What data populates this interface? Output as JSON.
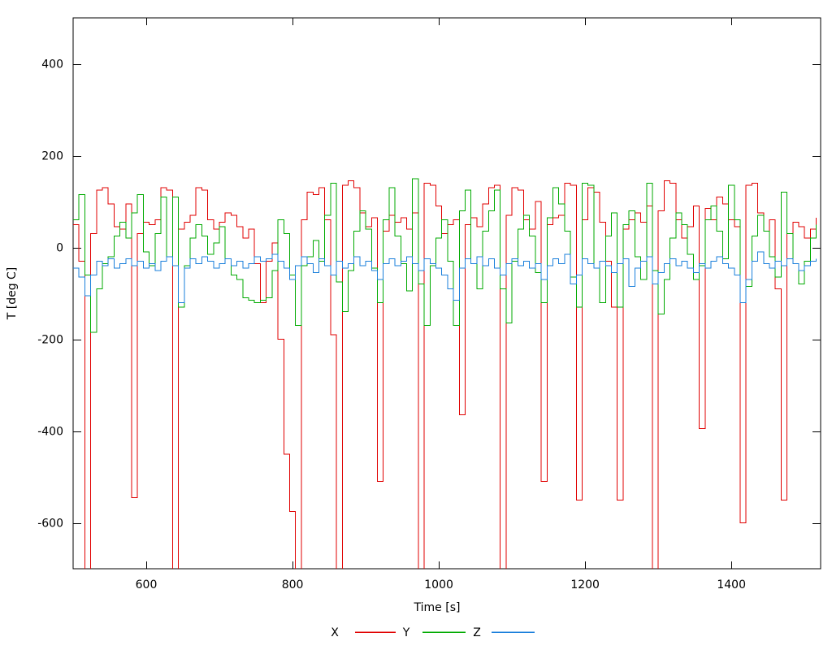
{
  "chart_data": {
    "type": "line",
    "line_style": "steps",
    "title": "",
    "xlabel": "Time [s]",
    "ylabel": "T [deg C]",
    "xlim": [
      500,
      1522
    ],
    "ylim": [
      -700,
      500
    ],
    "xticks": [
      600,
      800,
      1000,
      1200,
      1400
    ],
    "yticks": [
      400,
      200,
      0,
      -200,
      -400,
      -600
    ],
    "grid": false,
    "legend_position": "bottom-center",
    "background_color": "#ffffff",
    "axis_color": "#000000",
    "t0": 500,
    "dt": 8,
    "series": [
      {
        "name": "X",
        "color": "#e00000",
        "values": [
          50,
          -30,
          -750,
          30,
          125,
          130,
          95,
          45,
          40,
          95,
          -545,
          30,
          55,
          50,
          60,
          130,
          125,
          -750,
          40,
          55,
          70,
          130,
          125,
          60,
          40,
          55,
          75,
          70,
          45,
          20,
          40,
          -35,
          -120,
          -30,
          10,
          -200,
          -450,
          -575,
          -750,
          60,
          120,
          115,
          130,
          60,
          -190,
          -750,
          135,
          145,
          130,
          75,
          45,
          65,
          -510,
          35,
          70,
          55,
          65,
          40,
          75,
          -750,
          140,
          135,
          90,
          30,
          50,
          60,
          -365,
          50,
          65,
          45,
          95,
          130,
          135,
          -750,
          70,
          130,
          125,
          60,
          40,
          100,
          -510,
          50,
          65,
          70,
          140,
          135,
          -550,
          60,
          130,
          120,
          55,
          -30,
          -130,
          -550,
          40,
          60,
          75,
          55,
          90,
          -750,
          80,
          145,
          140,
          60,
          20,
          45,
          90,
          -395,
          85,
          60,
          110,
          95,
          60,
          45,
          -600,
          135,
          140,
          75,
          35,
          60,
          -90,
          -550,
          30,
          55,
          45,
          20,
          40,
          65
        ]
      },
      {
        "name": "Y",
        "color": "#00aa00",
        "values": [
          60,
          115,
          -60,
          -185,
          -90,
          -35,
          -20,
          25,
          55,
          20,
          75,
          115,
          -10,
          -40,
          30,
          110,
          -20,
          110,
          -130,
          -40,
          20,
          50,
          25,
          -15,
          10,
          45,
          -25,
          -60,
          -70,
          -110,
          -115,
          -120,
          -115,
          -110,
          -50,
          60,
          30,
          -60,
          -170,
          -40,
          -20,
          15,
          -30,
          70,
          140,
          -75,
          -140,
          -50,
          35,
          80,
          40,
          -45,
          -120,
          60,
          130,
          25,
          -35,
          -95,
          150,
          -80,
          -170,
          -40,
          20,
          60,
          -30,
          -170,
          80,
          125,
          -35,
          -90,
          35,
          80,
          125,
          -90,
          -165,
          -30,
          40,
          70,
          25,
          -55,
          -120,
          65,
          130,
          95,
          35,
          -65,
          -130,
          140,
          135,
          -45,
          -120,
          25,
          75,
          -130,
          50,
          80,
          -20,
          -70,
          140,
          -50,
          -145,
          -70,
          20,
          75,
          50,
          -15,
          -70,
          -40,
          60,
          90,
          35,
          -25,
          135,
          60,
          -120,
          -85,
          25,
          70,
          35,
          -20,
          -65,
          120,
          30,
          -35,
          -80,
          -30,
          20,
          50
        ]
      },
      {
        "name": "Z",
        "color": "#1a7fdb",
        "values": [
          -45,
          -65,
          -105,
          -60,
          -30,
          -40,
          -25,
          -45,
          -35,
          -25,
          -40,
          -30,
          -45,
          -35,
          -50,
          -30,
          -20,
          -40,
          -120,
          -45,
          -25,
          -35,
          -20,
          -30,
          -45,
          -35,
          -25,
          -40,
          -30,
          -45,
          -35,
          -20,
          -30,
          -25,
          -15,
          -30,
          -45,
          -70,
          -40,
          -20,
          -35,
          -55,
          -25,
          -40,
          -60,
          -30,
          -45,
          -35,
          -20,
          -40,
          -30,
          -50,
          -70,
          -35,
          -25,
          -40,
          -30,
          -20,
          -35,
          -50,
          -25,
          -35,
          -45,
          -60,
          -90,
          -115,
          -45,
          -25,
          -35,
          -20,
          -40,
          -25,
          -45,
          -60,
          -35,
          -25,
          -40,
          -30,
          -45,
          -35,
          -70,
          -40,
          -25,
          -35,
          -15,
          -80,
          -60,
          -25,
          -35,
          -45,
          -30,
          -40,
          -55,
          -35,
          -25,
          -85,
          -45,
          -30,
          -20,
          -80,
          -55,
          -35,
          -25,
          -40,
          -30,
          -45,
          -55,
          -35,
          -45,
          -30,
          -20,
          -35,
          -45,
          -60,
          -120,
          -70,
          -30,
          -10,
          -35,
          -45,
          -30,
          -40,
          -25,
          -35,
          -50,
          -40,
          -30,
          -25
        ]
      }
    ]
  }
}
